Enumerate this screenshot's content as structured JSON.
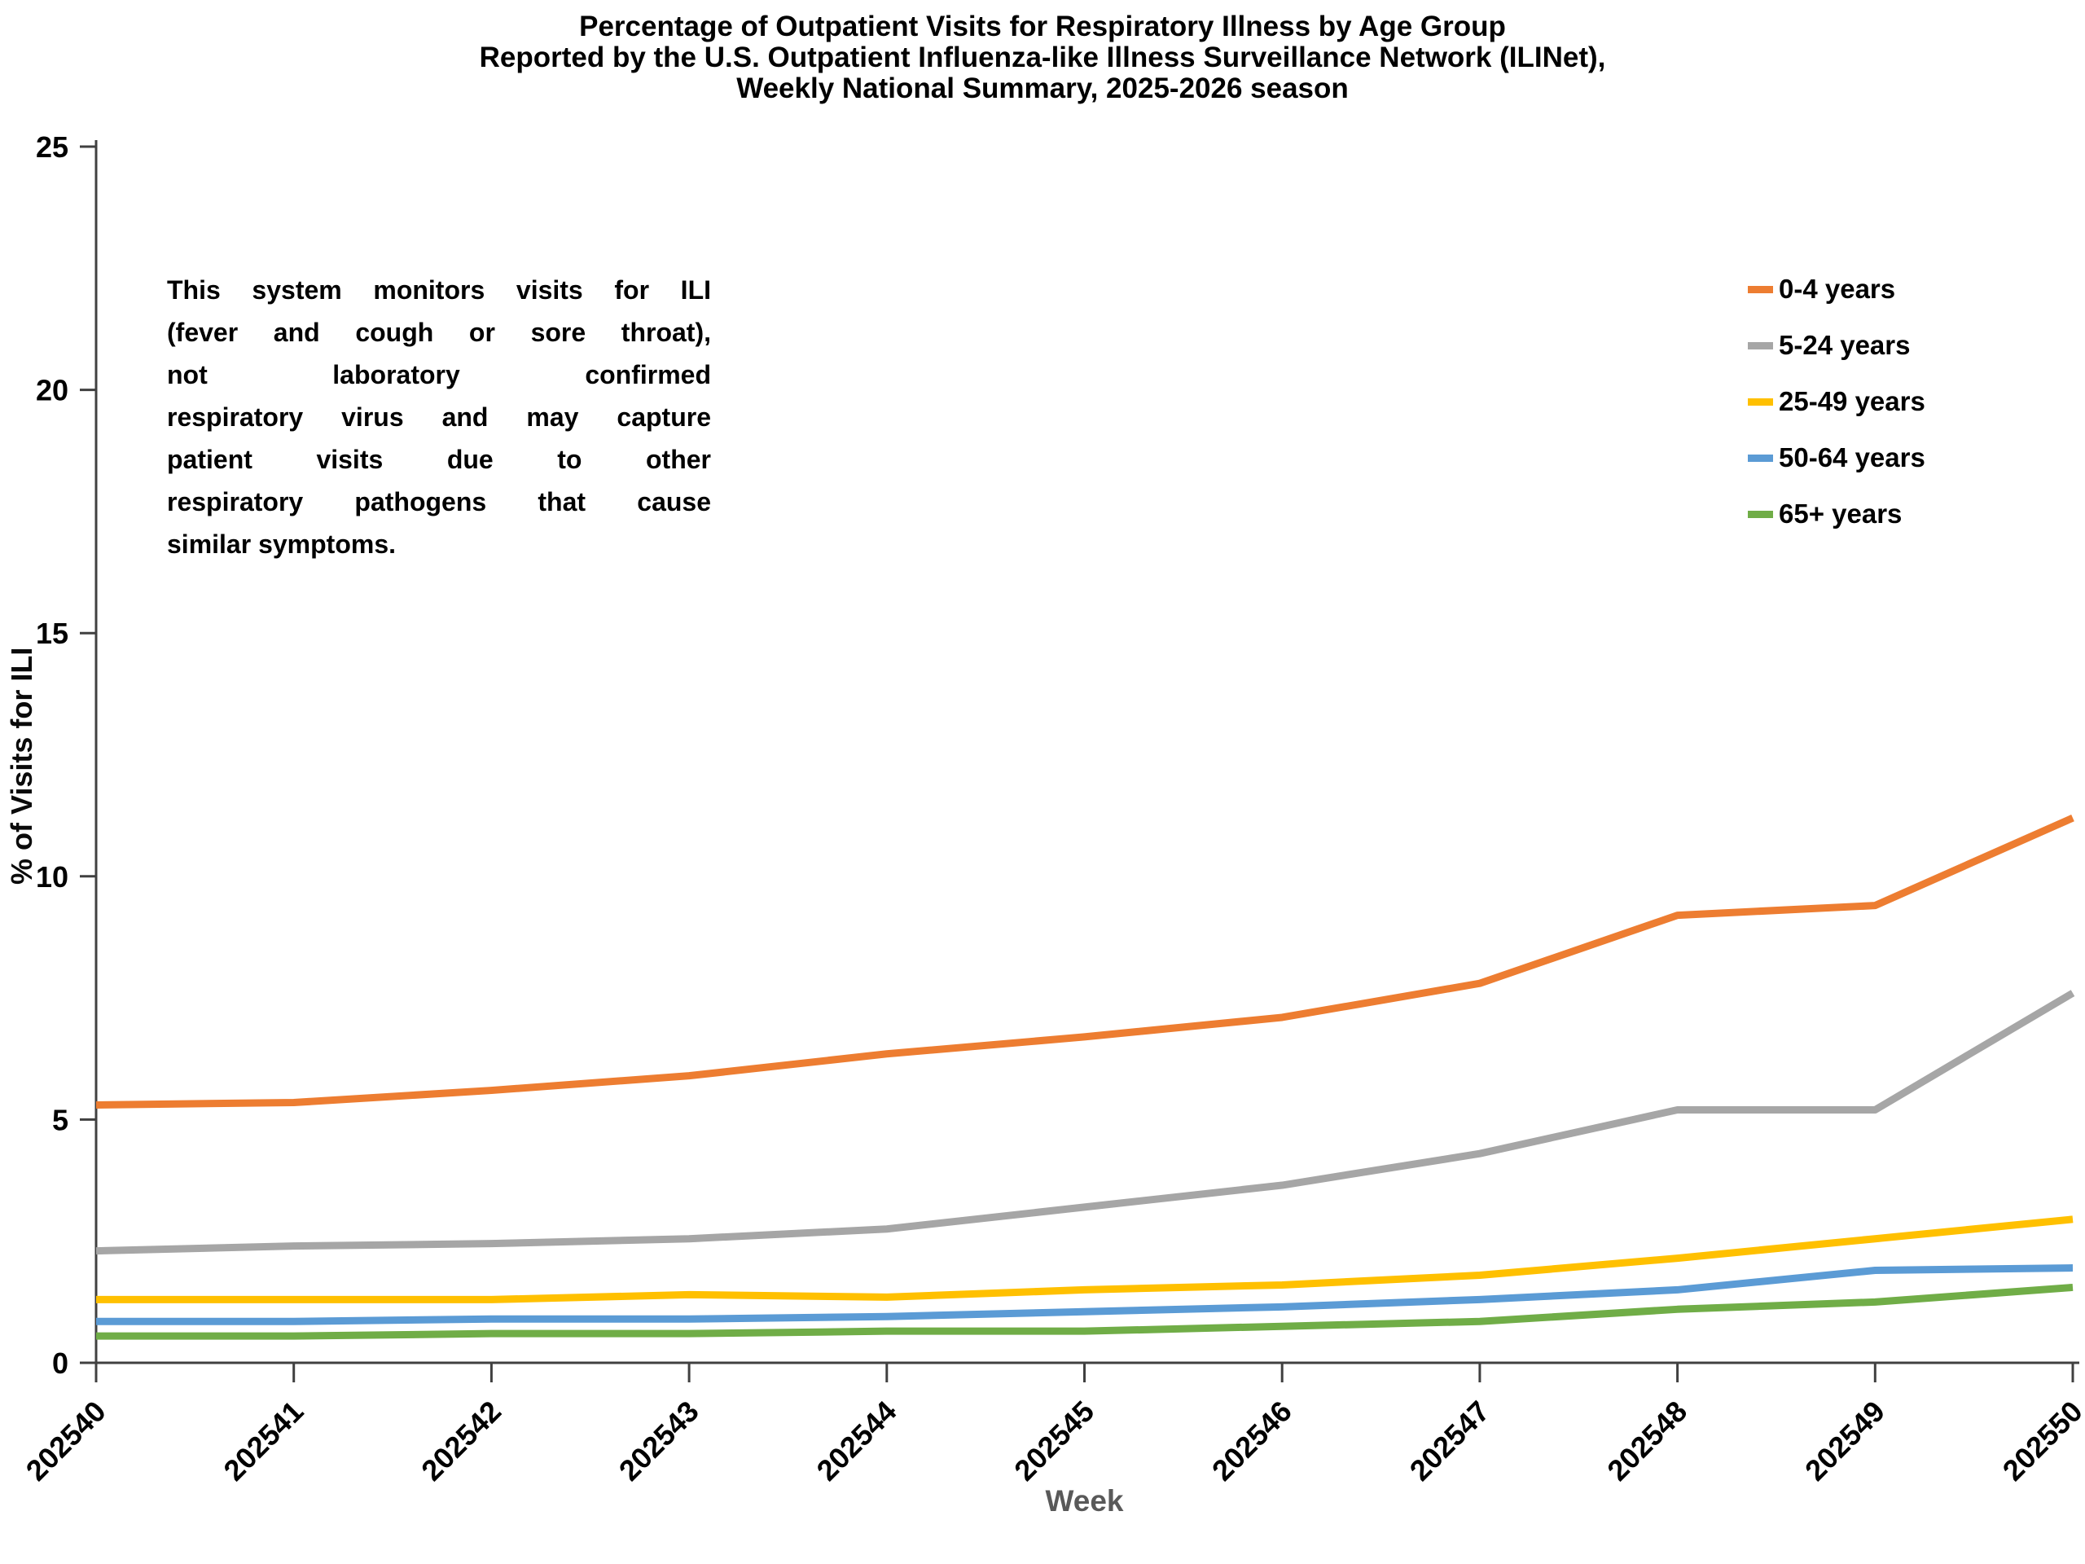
{
  "title": {
    "line1": "Percentage of Outpatient Visits for Respiratory Illness by Age Group",
    "line2": "Reported by the U.S. Outpatient Influenza-like Illness Surveillance Network (ILINet),",
    "line3": "Weekly National Summary, 2025-2026 season"
  },
  "annotation_lines": [
    "This system monitors visits for ILI",
    "(fever and cough or sore throat),",
    "not laboratory confirmed",
    "respiratory virus and may capture",
    "patient visits due to other",
    "respiratory pathogens that cause",
    "similar symptoms."
  ],
  "chart_data": {
    "type": "line",
    "title": "Percentage of Outpatient Visits for Respiratory Illness by Age Group Reported by the U.S. Outpatient Influenza-like Illness Surveillance Network (ILINet), Weekly National Summary, 2025-2026 season",
    "xlabel": "Week",
    "ylabel": "% of Visits for ILI",
    "ylim": [
      0,
      25
    ],
    "ytick_interval": 5,
    "yticks": [
      0,
      5,
      10,
      15,
      20,
      25
    ],
    "grid": false,
    "legend_position": "right",
    "categories": [
      "202540",
      "202541",
      "202542",
      "202543",
      "202544",
      "202545",
      "202546",
      "202547",
      "202548",
      "202549",
      "202550"
    ],
    "series": [
      {
        "name": "0-4 years",
        "color": "#ED7D31",
        "values": [
          5.3,
          5.35,
          5.6,
          5.9,
          6.35,
          6.7,
          7.1,
          7.8,
          9.2,
          9.4,
          11.2
        ]
      },
      {
        "name": "5-24 years",
        "color": "#A6A6A6",
        "values": [
          2.3,
          2.4,
          2.45,
          2.55,
          2.75,
          3.2,
          3.65,
          4.3,
          5.2,
          5.2,
          7.6
        ]
      },
      {
        "name": "25-49 years",
        "color": "#FFC000",
        "values": [
          1.3,
          1.3,
          1.3,
          1.4,
          1.35,
          1.5,
          1.6,
          1.8,
          2.15,
          2.55,
          2.95
        ]
      },
      {
        "name": "50-64 years",
        "color": "#5B9BD5",
        "values": [
          0.85,
          0.85,
          0.9,
          0.9,
          0.95,
          1.05,
          1.15,
          1.3,
          1.5,
          1.9,
          1.95
        ]
      },
      {
        "name": "65+ years",
        "color": "#70AD47",
        "values": [
          0.55,
          0.55,
          0.6,
          0.6,
          0.65,
          0.65,
          0.75,
          0.85,
          1.1,
          1.25,
          1.55
        ]
      }
    ]
  },
  "axis_colors": {
    "line": "#404040",
    "tick_labels": "#000000",
    "x_title": "#595959",
    "y_title": "#0a0a0a"
  }
}
